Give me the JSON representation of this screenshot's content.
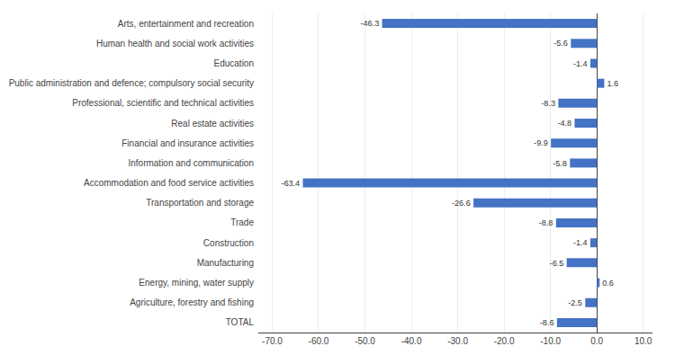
{
  "chart_data": {
    "type": "bar",
    "orientation": "horizontal",
    "categories": [
      "Arts, entertainment and recreation",
      "Human health and social work activities",
      "Education",
      "Public administration and defence; compulsory social security",
      "Professional, scientific and technical activities",
      "Real estate activities",
      "Financial and insurance activities",
      "Information and communication",
      "Accommodation and food service activities",
      "Transportation and storage",
      "Trade",
      "Construction",
      "Manufacturing",
      "Energy, mining, water supply",
      "Agriculture, forestry and fishing",
      "TOTAL"
    ],
    "values": [
      -46.3,
      -5.6,
      -1.4,
      1.6,
      -8.3,
      -4.8,
      -9.9,
      -5.8,
      -63.4,
      -26.6,
      -8.8,
      -1.4,
      -6.5,
      0.6,
      -2.5,
      -8.6
    ],
    "color": "#4472C4",
    "xlim": [
      -73,
      12
    ],
    "xticks": [
      {
        "value": -70,
        "label": "-70.0"
      },
      {
        "value": -60,
        "label": "-60.0"
      },
      {
        "value": -50,
        "label": "-50.0"
      },
      {
        "value": -40,
        "label": "-40.0"
      },
      {
        "value": -30,
        "label": "-30.0"
      },
      {
        "value": -20,
        "label": "-20.0"
      },
      {
        "value": -10,
        "label": "-10.0"
      },
      {
        "value": 0,
        "label": "0.0"
      },
      {
        "value": 10,
        "label": "10.0"
      }
    ],
    "grid": true,
    "data_labels": true
  }
}
